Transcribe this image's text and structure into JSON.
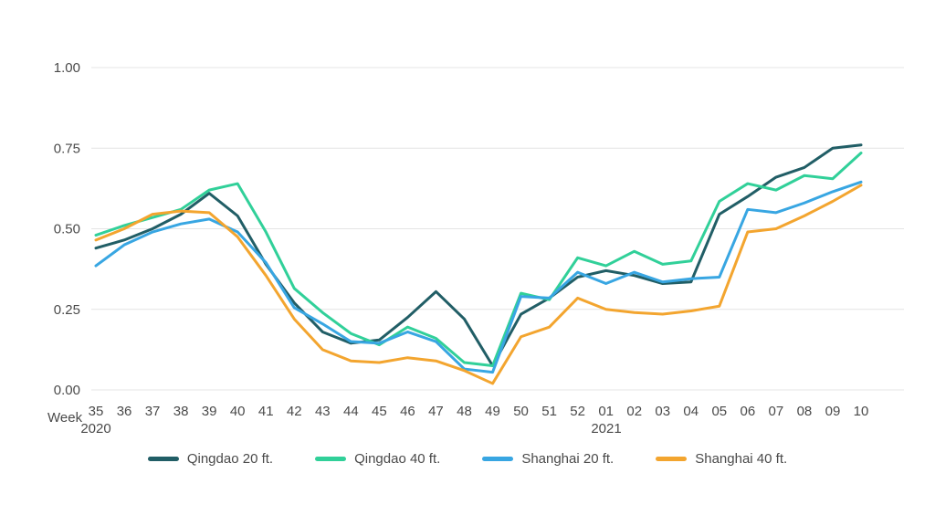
{
  "chart_data": {
    "type": "line",
    "title": "",
    "legend_position": "bottom",
    "x_axis": {
      "label": "Week",
      "categories": [
        "35",
        "36",
        "37",
        "38",
        "39",
        "40",
        "41",
        "42",
        "43",
        "44",
        "45",
        "46",
        "47",
        "48",
        "49",
        "50",
        "51",
        "52",
        "01",
        "02",
        "03",
        "04",
        "05",
        "06",
        "07",
        "08",
        "09",
        "10"
      ],
      "year_markers": [
        {
          "label": "2020",
          "category_index": 0
        },
        {
          "label": "2021",
          "category_index": 18
        }
      ]
    },
    "y_axis": {
      "min": 0,
      "max": 1,
      "grid": true,
      "ticks": [
        {
          "label": "1.00",
          "value": 1.0
        },
        {
          "label": "0.75",
          "value": 0.75
        },
        {
          "label": "0.50",
          "value": 0.5
        },
        {
          "label": "0.25",
          "value": 0.25
        },
        {
          "label": "0.00",
          "value": 0.0
        }
      ]
    },
    "series": [
      {
        "name": "Qingdao 20 ft.",
        "color": "#215e66",
        "values": [
          0.44,
          0.465,
          0.5,
          0.545,
          0.61,
          0.54,
          0.39,
          0.27,
          0.18,
          0.145,
          0.155,
          0.225,
          0.305,
          0.22,
          0.075,
          0.235,
          0.285,
          0.35,
          0.37,
          0.355,
          0.33,
          0.335,
          0.545,
          0.6,
          0.66,
          0.69,
          0.75,
          0.76
        ]
      },
      {
        "name": "Qingdao 40 ft.",
        "color": "#31d099",
        "values": [
          0.48,
          0.51,
          0.535,
          0.56,
          0.62,
          0.64,
          0.49,
          0.315,
          0.24,
          0.175,
          0.14,
          0.195,
          0.16,
          0.085,
          0.075,
          0.3,
          0.28,
          0.41,
          0.385,
          0.43,
          0.39,
          0.4,
          0.585,
          0.64,
          0.62,
          0.665,
          0.655,
          0.735
        ]
      },
      {
        "name": "Shanghai 20 ft.",
        "color": "#38a6e2",
        "values": [
          0.385,
          0.45,
          0.49,
          0.515,
          0.53,
          0.49,
          0.395,
          0.255,
          0.205,
          0.15,
          0.145,
          0.18,
          0.15,
          0.065,
          0.055,
          0.29,
          0.285,
          0.365,
          0.33,
          0.365,
          0.335,
          0.345,
          0.35,
          0.56,
          0.55,
          0.58,
          0.615,
          0.645
        ]
      },
      {
        "name": "Shanghai 40 ft.",
        "color": "#f3a52f",
        "values": [
          0.465,
          0.5,
          0.545,
          0.555,
          0.55,
          0.475,
          0.355,
          0.22,
          0.125,
          0.09,
          0.085,
          0.1,
          0.09,
          0.06,
          0.02,
          0.165,
          0.195,
          0.285,
          0.25,
          0.24,
          0.235,
          0.245,
          0.26,
          0.49,
          0.5,
          0.54,
          0.585,
          0.635
        ]
      }
    ]
  },
  "colors": {
    "background": "#ffffff",
    "gridline": "#e4e4e4",
    "axis_text": "#4a4a4a"
  }
}
